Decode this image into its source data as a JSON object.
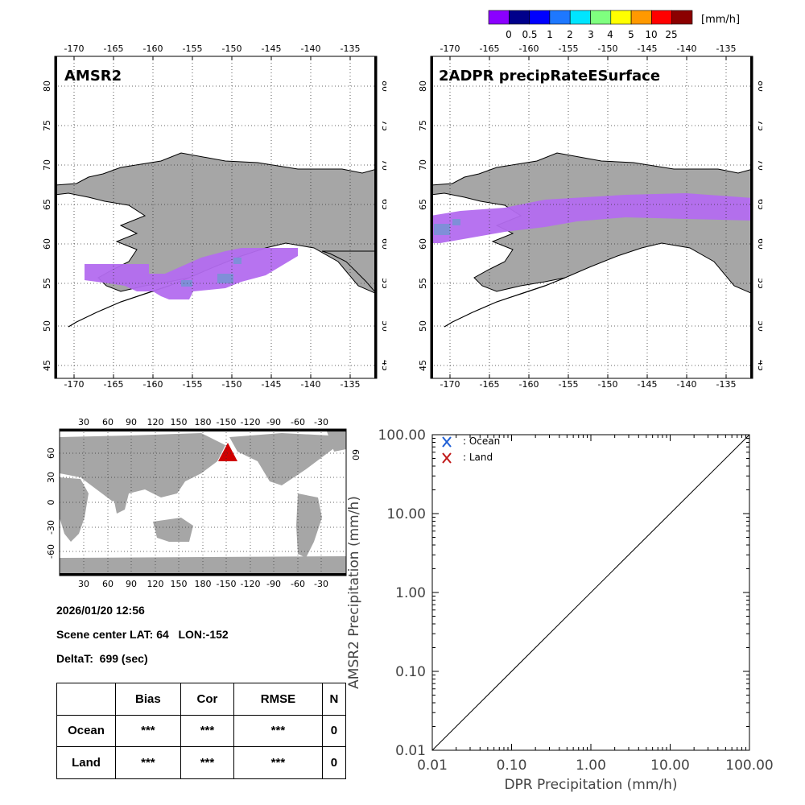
{
  "colorbar": {
    "unit": "[mm/h]",
    "colors": [
      "#8b00ff",
      "#00008b",
      "#0000ff",
      "#1e78ff",
      "#00e5ff",
      "#7fff7f",
      "#ffff00",
      "#ff9900",
      "#ff0000",
      "#8b0000"
    ],
    "labels": [
      "0",
      "0.5",
      "1",
      "2",
      "3",
      "4",
      "5",
      "10",
      "25"
    ]
  },
  "maps": {
    "lon_ticks": [
      "-170",
      "-165",
      "-160",
      "-155",
      "-150",
      "-145",
      "-140",
      "-135"
    ],
    "lat_ticks": [
      "80",
      "75",
      "70",
      "65",
      "60",
      "55",
      "50",
      "45"
    ],
    "amsr2_title": "AMSR2",
    "dpr_title": "2ADPR precipRateESurface"
  },
  "globe": {
    "lon_ticks": [
      "30",
      "60",
      "90",
      "120",
      "150",
      "180",
      "-150",
      "-120",
      "-90",
      "-60",
      "-30"
    ],
    "lat_ticks": [
      "60",
      "30",
      "0",
      "-30",
      "-60"
    ],
    "right_lat_tick": "60",
    "scene_marker": "scene-center-triangle"
  },
  "info": {
    "datetime": "2026/01/20 12:56",
    "scene_center": "Scene center LAT: 64   LON:-152",
    "delta_t": "DeltaT:  699 (sec)"
  },
  "stats": {
    "headers": [
      "",
      "Bias",
      "Cor",
      "RMSE",
      "N"
    ],
    "rows": [
      {
        "label": "Ocean",
        "bias": "***",
        "cor": "***",
        "rmse": "***",
        "n": "0"
      },
      {
        "label": "Land",
        "bias": "***",
        "cor": "***",
        "rmse": "***",
        "n": "0"
      }
    ]
  },
  "chart_data": {
    "type": "scatter",
    "title": "",
    "xlabel": "DPR Precipitation (mm/h)",
    "ylabel": "AMSR2 Precipitation (mm/h)",
    "xscale": "log",
    "yscale": "log",
    "xlim": [
      0.01,
      100
    ],
    "ylim": [
      0.01,
      100
    ],
    "x_tick_labels": [
      "0.01",
      "0.10",
      "1.00",
      "10.00",
      "100.00"
    ],
    "y_tick_labels": [
      "0.01",
      "0.10",
      "1.00",
      "10.00",
      "100.00"
    ],
    "series": [
      {
        "name": ": Ocean",
        "marker": "x",
        "color": "#1f5fd6",
        "x": [],
        "y": []
      },
      {
        "name": ": Land",
        "marker": "x",
        "color": "#c01818",
        "x": [],
        "y": []
      }
    ],
    "reference_line": {
      "name": "1:1 line",
      "from": [
        0.01,
        0.01
      ],
      "to": [
        100,
        100
      ]
    }
  }
}
